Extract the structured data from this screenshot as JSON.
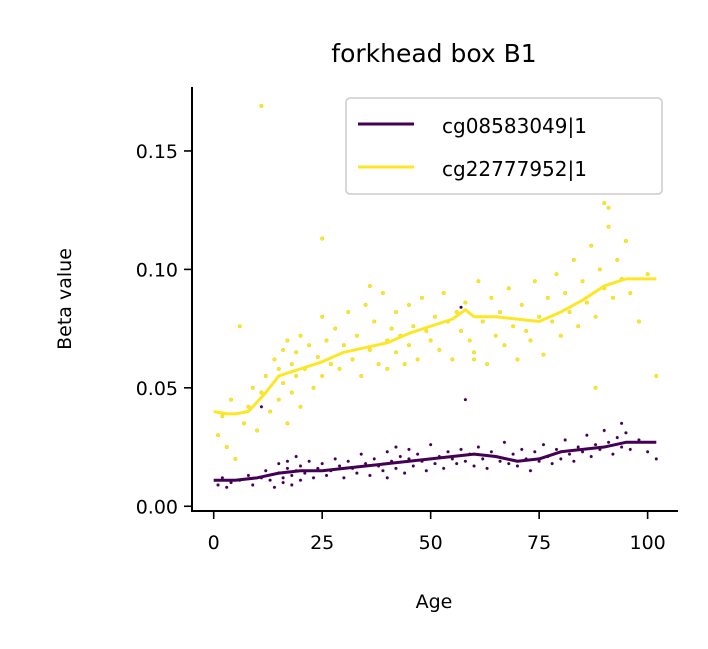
{
  "chart_data": {
    "type": "scatter",
    "title": "forkhead box B1",
    "xlabel": "Age",
    "ylabel": "Beta value",
    "xlim": [
      -5,
      107
    ],
    "ylim": [
      -0.002,
      0.177
    ],
    "xticks": [
      0,
      25,
      50,
      75,
      100
    ],
    "xtick_labels": [
      "0",
      "25",
      "50",
      "75",
      "100"
    ],
    "yticks": [
      0.0,
      0.05,
      0.1,
      0.15
    ],
    "ytick_labels": [
      "0.00",
      "0.05",
      "0.10",
      "0.15"
    ],
    "grid": false,
    "legend_position": "top-right",
    "series": [
      {
        "name": "cg08583049|1",
        "color": "#440154",
        "trend": {
          "x": [
            0,
            5,
            10,
            15,
            20,
            25,
            30,
            35,
            40,
            45,
            50,
            55,
            60,
            65,
            70,
            75,
            80,
            85,
            90,
            95,
            102
          ],
          "y": [
            0.011,
            0.011,
            0.012,
            0.014,
            0.015,
            0.015,
            0.016,
            0.017,
            0.018,
            0.019,
            0.02,
            0.021,
            0.022,
            0.021,
            0.019,
            0.02,
            0.023,
            0.024,
            0.025,
            0.027,
            0.027
          ]
        },
        "points": {
          "x": [
            1,
            2,
            3,
            4,
            6,
            8,
            9,
            11,
            12,
            13,
            14,
            15,
            15,
            16,
            16,
            17,
            17,
            18,
            18,
            19,
            19,
            20,
            20,
            21,
            22,
            23,
            24,
            25,
            26,
            27,
            28,
            29,
            30,
            31,
            32,
            33,
            34,
            35,
            36,
            37,
            38,
            39,
            40,
            40,
            41,
            42,
            42,
            43,
            44,
            45,
            45,
            46,
            47,
            48,
            49,
            50,
            51,
            52,
            53,
            54,
            55,
            56,
            57,
            58,
            59,
            60,
            61,
            62,
            63,
            64,
            65,
            66,
            67,
            68,
            69,
            70,
            71,
            72,
            73,
            74,
            75,
            76,
            77,
            78,
            79,
            80,
            81,
            82,
            83,
            84,
            85,
            86,
            87,
            88,
            89,
            90,
            91,
            92,
            93,
            94,
            95,
            96,
            98,
            100,
            102,
            11,
            58,
            94,
            57
          ],
          "y": [
            0.009,
            0.012,
            0.008,
            0.01,
            0.011,
            0.013,
            0.009,
            0.012,
            0.015,
            0.011,
            0.008,
            0.014,
            0.018,
            0.012,
            0.01,
            0.016,
            0.019,
            0.013,
            0.009,
            0.015,
            0.021,
            0.017,
            0.011,
            0.014,
            0.019,
            0.012,
            0.016,
            0.018,
            0.013,
            0.015,
            0.02,
            0.017,
            0.012,
            0.019,
            0.016,
            0.014,
            0.022,
            0.018,
            0.013,
            0.02,
            0.017,
            0.015,
            0.023,
            0.012,
            0.019,
            0.025,
            0.016,
            0.021,
            0.014,
            0.02,
            0.024,
            0.017,
            0.022,
            0.019,
            0.015,
            0.026,
            0.018,
            0.021,
            0.016,
            0.023,
            0.02,
            0.018,
            0.024,
            0.019,
            0.022,
            0.017,
            0.025,
            0.02,
            0.016,
            0.023,
            0.021,
            0.019,
            0.027,
            0.018,
            0.022,
            0.017,
            0.024,
            0.02,
            0.015,
            0.023,
            0.019,
            0.026,
            0.021,
            0.018,
            0.024,
            0.02,
            0.028,
            0.022,
            0.019,
            0.025,
            0.023,
            0.03,
            0.021,
            0.026,
            0.024,
            0.032,
            0.027,
            0.022,
            0.029,
            0.025,
            0.031,
            0.024,
            0.028,
            0.023,
            0.02,
            0.042,
            0.045,
            0.035,
            0.084
          ]
        }
      },
      {
        "name": "cg22777952|1",
        "color": "#fde725",
        "trend": {
          "x": [
            0,
            3,
            5,
            8,
            12,
            15,
            20,
            25,
            30,
            35,
            40,
            45,
            50,
            55,
            58,
            60,
            65,
            70,
            75,
            80,
            85,
            90,
            95,
            102
          ],
          "y": [
            0.04,
            0.039,
            0.039,
            0.04,
            0.048,
            0.055,
            0.058,
            0.061,
            0.065,
            0.067,
            0.069,
            0.073,
            0.076,
            0.079,
            0.083,
            0.08,
            0.08,
            0.079,
            0.078,
            0.082,
            0.087,
            0.093,
            0.096,
            0.096
          ]
        },
        "points": {
          "x": [
            1,
            2,
            3,
            4,
            5,
            6,
            7,
            8,
            9,
            10,
            11,
            12,
            13,
            14,
            15,
            15,
            16,
            16,
            17,
            17,
            18,
            18,
            19,
            19,
            20,
            20,
            21,
            22,
            23,
            24,
            25,
            25,
            26,
            27,
            28,
            29,
            30,
            31,
            32,
            33,
            34,
            35,
            36,
            37,
            38,
            39,
            40,
            40,
            41,
            42,
            42,
            43,
            44,
            45,
            45,
            46,
            47,
            48,
            49,
            50,
            51,
            52,
            53,
            54,
            55,
            56,
            57,
            58,
            59,
            60,
            61,
            62,
            63,
            64,
            65,
            66,
            67,
            68,
            69,
            70,
            71,
            72,
            73,
            74,
            75,
            76,
            77,
            78,
            79,
            80,
            81,
            82,
            83,
            84,
            85,
            86,
            87,
            88,
            89,
            90,
            91,
            92,
            93,
            94,
            95,
            96,
            98,
            100,
            102,
            11,
            25,
            90,
            91,
            36,
            60,
            88
          ],
          "y": [
            0.03,
            0.038,
            0.025,
            0.045,
            0.02,
            0.076,
            0.035,
            0.042,
            0.05,
            0.032,
            0.048,
            0.055,
            0.04,
            0.062,
            0.058,
            0.045,
            0.066,
            0.052,
            0.035,
            0.07,
            0.06,
            0.048,
            0.065,
            0.055,
            0.072,
            0.042,
            0.058,
            0.068,
            0.05,
            0.063,
            0.08,
            0.055,
            0.07,
            0.06,
            0.075,
            0.058,
            0.068,
            0.082,
            0.062,
            0.072,
            0.055,
            0.085,
            0.066,
            0.078,
            0.06,
            0.09,
            0.07,
            0.058,
            0.075,
            0.065,
            0.082,
            0.072,
            0.06,
            0.085,
            0.068,
            0.076,
            0.062,
            0.088,
            0.074,
            0.07,
            0.08,
            0.066,
            0.09,
            0.078,
            0.062,
            0.082,
            0.074,
            0.086,
            0.07,
            0.065,
            0.095,
            0.078,
            0.06,
            0.088,
            0.072,
            0.082,
            0.068,
            0.092,
            0.076,
            0.062,
            0.085,
            0.074,
            0.07,
            0.095,
            0.08,
            0.064,
            0.088,
            0.078,
            0.098,
            0.072,
            0.09,
            0.082,
            0.104,
            0.076,
            0.095,
            0.086,
            0.11,
            0.08,
            0.1,
            0.092,
            0.118,
            0.088,
            0.104,
            0.096,
            0.112,
            0.09,
            0.078,
            0.098,
            0.055,
            0.169,
            0.113,
            0.128,
            0.126,
            0.093,
            0.062,
            0.05
          ]
        }
      }
    ]
  }
}
